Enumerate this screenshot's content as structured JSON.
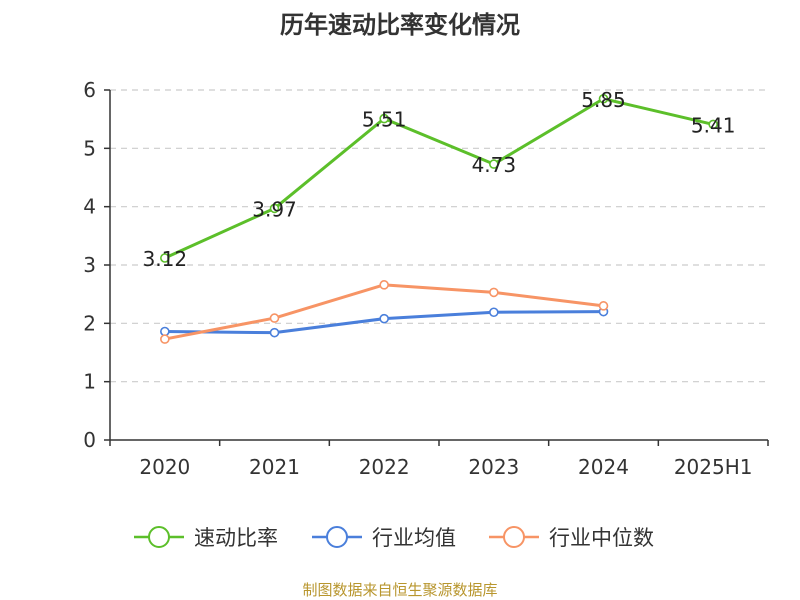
{
  "chart_data": {
    "type": "line",
    "title": "历年速动比率变化情况",
    "categories": [
      "2020",
      "2021",
      "2022",
      "2023",
      "2024",
      "2025H1"
    ],
    "y_ticks": [
      "0",
      "1",
      "2",
      "3",
      "4",
      "5",
      "6"
    ],
    "ylim": [
      0,
      6
    ],
    "grid": true,
    "legend_position": "bottom",
    "series": [
      {
        "name": "速动比率",
        "color": "#5cbf2a",
        "values": [
          3.12,
          3.97,
          5.51,
          4.73,
          5.85,
          5.41
        ],
        "labels": [
          "3.12",
          "3.97",
          "5.51",
          "4.73",
          "5.85",
          "5.41"
        ]
      },
      {
        "name": "行业均值",
        "color": "#4a7fdb",
        "values": [
          1.86,
          1.84,
          2.08,
          2.19,
          2.2,
          null
        ]
      },
      {
        "name": "行业中位数",
        "color": "#f79465",
        "values": [
          1.73,
          2.09,
          2.66,
          2.53,
          2.3,
          null
        ]
      }
    ],
    "source": "制图数据来自恒生聚源数据库"
  }
}
